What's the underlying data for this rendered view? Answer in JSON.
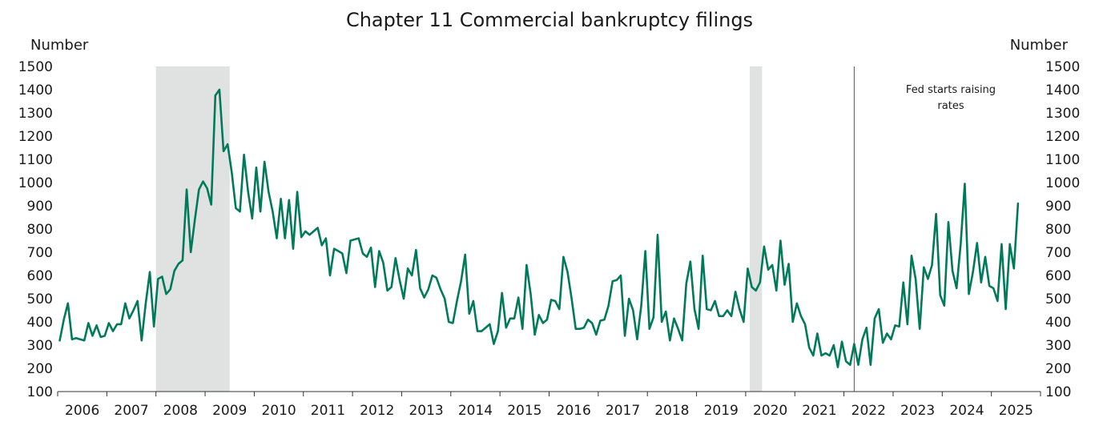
{
  "chart_data": {
    "type": "line",
    "title": "Chapter 11 Commercial bankruptcy filings",
    "ylabel_left": "Number",
    "ylabel_right": "Number",
    "ylim": [
      100,
      1500
    ],
    "yticks": [
      100,
      200,
      300,
      400,
      500,
      600,
      700,
      800,
      900,
      1000,
      1100,
      1200,
      1300,
      1400,
      1500
    ],
    "xlim": [
      "2006-01",
      "2025-12"
    ],
    "xticks": [
      "2006",
      "2007",
      "2008",
      "2009",
      "2010",
      "2011",
      "2012",
      "2013",
      "2014",
      "2015",
      "2016",
      "2017",
      "2018",
      "2019",
      "2020",
      "2021",
      "2022",
      "2023",
      "2024",
      "2025"
    ],
    "line_color": "#007a5a",
    "shade_color": "#e0e2e1",
    "recessions": [
      {
        "start": "2008-01",
        "end": "2009-06"
      },
      {
        "start": "2020-02",
        "end": "2020-04"
      }
    ],
    "events": [
      {
        "date": "2022-03",
        "label_lines": [
          "Fed starts raising",
          "rates"
        ]
      }
    ],
    "series": [
      {
        "start": "2006-01",
        "values": [
          320,
          410,
          480,
          325,
          330,
          325,
          320,
          395,
          340,
          385,
          335,
          340,
          395,
          360,
          390,
          390,
          480,
          415,
          450,
          490,
          320,
          480,
          615,
          380,
          585,
          595,
          520,
          540,
          620,
          650,
          665,
          970,
          700,
          840,
          970,
          1005,
          975,
          905,
          1375,
          1400,
          1135,
          1165,
          1045,
          890,
          875,
          1120,
          960,
          845,
          1065,
          875,
          1090,
          960,
          875,
          760,
          930,
          760,
          925,
          715,
          960,
          765,
          790,
          775,
          790,
          805,
          730,
          760,
          600,
          715,
          705,
          695,
          610,
          750,
          755,
          760,
          695,
          680,
          720,
          550,
          705,
          655,
          535,
          550,
          675,
          580,
          500,
          630,
          600,
          710,
          545,
          505,
          540,
          600,
          590,
          540,
          500,
          400,
          395,
          490,
          575,
          690,
          435,
          490,
          360,
          360,
          375,
          390,
          305,
          360,
          525,
          375,
          415,
          415,
          505,
          370,
          645,
          520,
          345,
          430,
          395,
          410,
          495,
          490,
          455,
          680,
          615,
          500,
          370,
          370,
          375,
          410,
          395,
          345,
          405,
          410,
          470,
          575,
          580,
          600,
          340,
          500,
          450,
          325,
          470,
          705,
          370,
          420,
          775,
          400,
          445,
          320,
          415,
          370,
          320,
          565,
          660,
          455,
          370,
          685,
          455,
          450,
          490,
          425,
          425,
          450,
          425,
          530,
          455,
          400,
          630,
          550,
          535,
          570,
          725,
          625,
          645,
          535,
          750,
          560,
          650,
          400,
          480,
          425,
          390,
          290,
          255,
          350,
          255,
          265,
          255,
          300,
          205,
          315,
          230,
          215,
          305,
          215,
          325,
          375,
          215,
          415,
          455,
          310,
          350,
          325,
          385,
          380,
          570,
          390,
          685,
          585,
          370,
          635,
          585,
          645,
          865,
          515,
          470,
          830,
          620,
          545,
          735,
          995,
          520,
          615,
          740,
          570,
          680,
          555,
          545,
          490,
          735,
          455,
          735,
          630,
          910
        ]
      }
    ]
  }
}
